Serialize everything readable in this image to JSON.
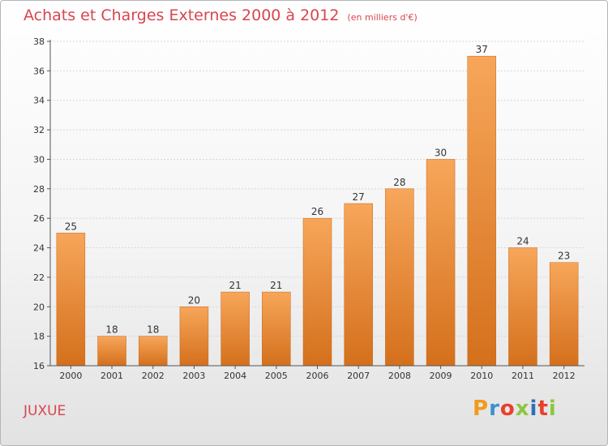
{
  "title": "Achats et Charges Externes 2000 à 2012",
  "subtitle": "(en milliers d'€)",
  "city": "JUXUE",
  "logo": {
    "letters": [
      "P",
      "r",
      "o",
      "x",
      "i",
      "t",
      "i"
    ],
    "colors": [
      "#f29a1e",
      "#3d8fd0",
      "#e8402c",
      "#8cc63f",
      "#2f6fb8",
      "#e8402c",
      "#8cc63f"
    ]
  },
  "chart_data": {
    "type": "bar",
    "categories": [
      "2000",
      "2001",
      "2002",
      "2003",
      "2004",
      "2005",
      "2006",
      "2007",
      "2008",
      "2009",
      "2010",
      "2011",
      "2012"
    ],
    "values": [
      25,
      18,
      18,
      20,
      21,
      21,
      26,
      27,
      28,
      30,
      37,
      24,
      23
    ],
    "data_labels": [
      "25",
      "18",
      "18",
      "20",
      "21",
      "21",
      "26",
      "27",
      "28",
      "30",
      "37",
      "24",
      "23"
    ],
    "ylim": [
      16,
      38
    ],
    "yticks": [
      16,
      18,
      20,
      22,
      24,
      26,
      28,
      30,
      32,
      34,
      36,
      38
    ],
    "ytick_labels": [
      "16",
      "18",
      "20",
      "22",
      "24",
      "26",
      "28",
      "30",
      "32",
      "34",
      "36",
      "38"
    ],
    "bar_color": "#f08a2c",
    "grid": "horizontal",
    "xlabel": "",
    "ylabel": ""
  }
}
